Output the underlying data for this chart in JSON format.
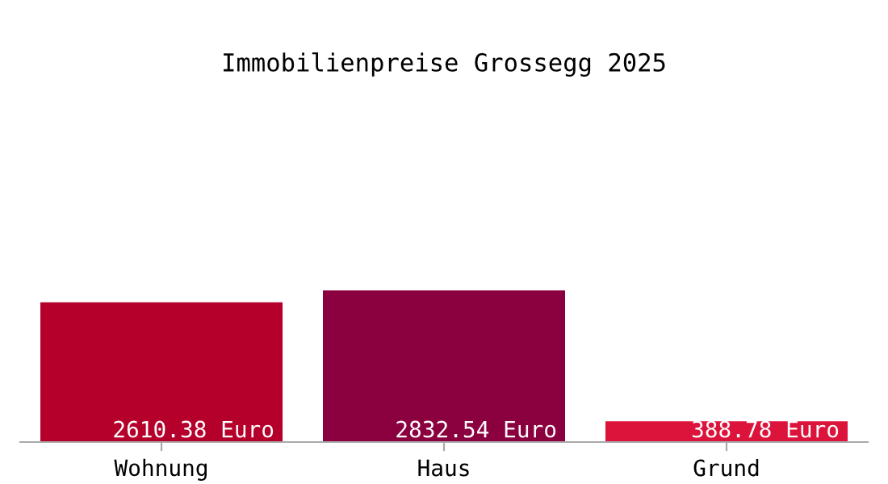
{
  "chart_data": {
    "type": "bar",
    "title": "Immobilienpreise Grossegg 2025",
    "categories": [
      "Wohnung",
      "Haus",
      "Grund"
    ],
    "values": [
      2610.38,
      2832.54,
      388.78
    ],
    "colors": [
      "#b5002b",
      "#8b003f",
      "#dc143c"
    ],
    "value_labels": [
      "2610.38 Euro",
      "2832.54 Euro",
      "388.78 Euro"
    ],
    "grid": false,
    "legend": false
  }
}
